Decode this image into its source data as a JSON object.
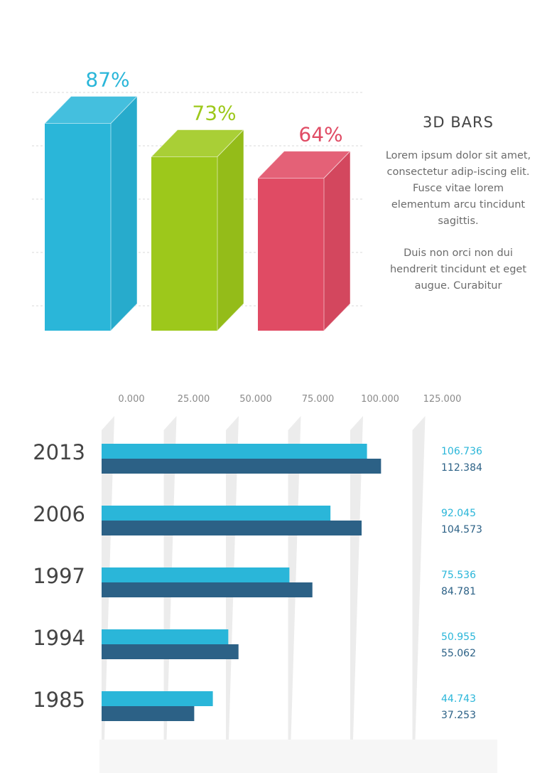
{
  "side_panel": {
    "title": "3D BARS",
    "paragraph1": "Lorem ipsum dolor sit amet, consectetur adip-iscing elit. Fusce vitae lorem elementum arcu tincidunt sagittis.",
    "paragraph2": "Duis non orci non dui hendrerit tincidunt et eget augue. Curabitur"
  },
  "chart_data": [
    {
      "type": "bar",
      "style": "3d",
      "categories": [
        "",
        "",
        ""
      ],
      "values": [
        87,
        73,
        64
      ],
      "labels": [
        "87%",
        "73%",
        "64%"
      ],
      "colors": [
        "#2ab6d9",
        "#9dc81b",
        "#e04b64"
      ],
      "ylim": [
        0,
        100
      ],
      "grid": true
    },
    {
      "type": "bar",
      "orientation": "horizontal",
      "categories": [
        "2013",
        "2006",
        "1997",
        "1994",
        "1985"
      ],
      "x_ticks": [
        "0.000",
        "25.000",
        "50.000",
        "75.000",
        "100.000",
        "125.000"
      ],
      "xlim": [
        0,
        125
      ],
      "series": [
        {
          "values": [
            106.736,
            92.045,
            75.536,
            50.955,
            44.743
          ],
          "labels": [
            "106.736",
            "92.045",
            "75.536",
            "50.955",
            "44.743"
          ],
          "color": "#2ab6d9"
        },
        {
          "values": [
            112.384,
            104.573,
            84.781,
            55.062,
            37.253
          ],
          "labels": [
            "112.384",
            "104.573",
            "84.781",
            "55.062",
            "37.253"
          ],
          "color": "#2c6186"
        }
      ]
    }
  ]
}
